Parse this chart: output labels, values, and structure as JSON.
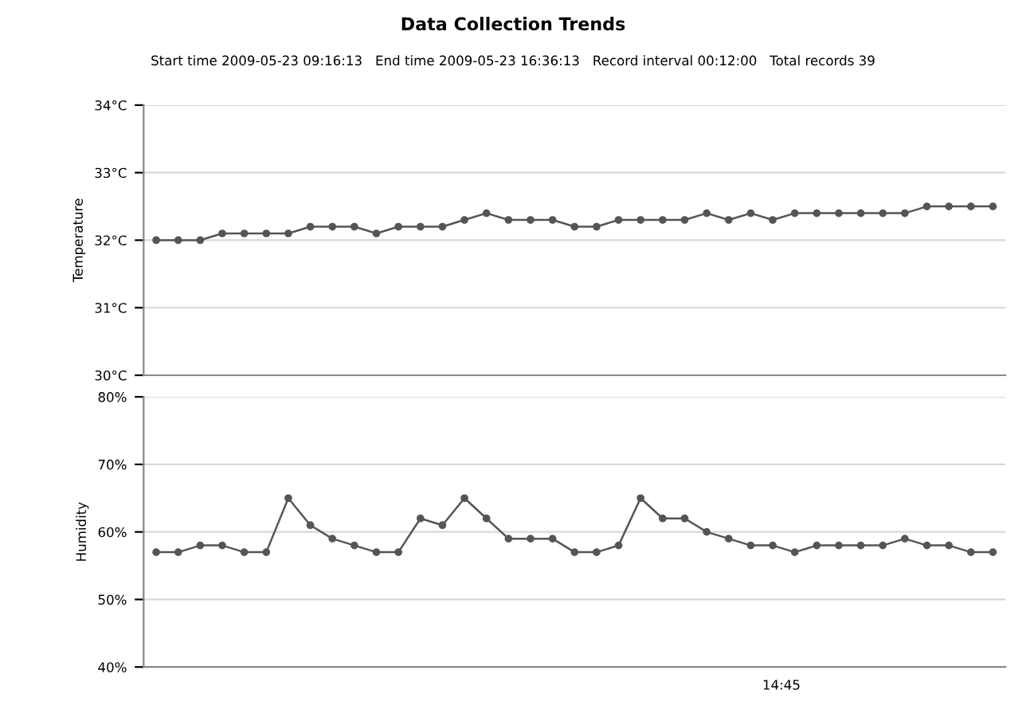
{
  "chart_data": [
    {
      "type": "line",
      "title": "Data Collection Trends",
      "subtitle": "Start time 2009-05-23 09:16:13   End time 2009-05-23 16:36:13   Record interval 00:12:00   Total records 39",
      "ylabel": "Temperature",
      "categories": [
        null,
        null,
        null,
        null,
        null,
        null,
        null,
        null,
        null,
        null,
        null,
        null,
        null,
        null,
        null,
        null,
        null,
        null,
        null,
        null,
        null,
        null,
        null,
        null,
        null,
        null,
        null,
        null,
        null,
        null,
        null,
        null,
        null,
        null,
        null,
        null,
        null,
        null,
        null
      ],
      "series": [
        {
          "color": "#555555",
          "values": [
            32.0,
            32.0,
            32.0,
            32.1,
            32.1,
            32.1,
            32.1,
            32.2,
            32.2,
            32.2,
            32.1,
            32.2,
            32.2,
            32.2,
            32.3,
            32.4,
            32.3,
            32.3,
            32.3,
            32.2,
            32.2,
            32.3,
            32.3,
            32.3,
            32.3,
            32.4,
            32.3,
            32.4,
            32.3,
            32.4,
            32.4,
            32.4,
            32.4,
            32.4,
            32.4,
            32.5,
            32.5,
            32.5,
            32.5
          ]
        }
      ],
      "ylim": [
        30,
        34
      ],
      "yticks": [
        {
          "value": 30,
          "label": "30°C"
        },
        {
          "value": 31,
          "label": "31°C"
        },
        {
          "value": 32,
          "label": "32°C"
        },
        {
          "value": 33,
          "label": "33°C"
        },
        {
          "value": 34,
          "label": "34°C"
        }
      ],
      "grid": "y",
      "marker": "circle",
      "line_style": "solid"
    },
    {
      "type": "line",
      "ylabel": "Humidity",
      "annotations": [
        "14:45"
      ],
      "categories": [
        null,
        null,
        null,
        null,
        null,
        null,
        null,
        null,
        null,
        null,
        null,
        null,
        null,
        null,
        null,
        null,
        null,
        null,
        null,
        null,
        null,
        null,
        null,
        null,
        null,
        null,
        null,
        null,
        null,
        null,
        null,
        null,
        null,
        null,
        null,
        null,
        null,
        null,
        null
      ],
      "series": [
        {
          "color": "#555555",
          "values": [
            57,
            57,
            58,
            58,
            57,
            57,
            65,
            61,
            59,
            58,
            57,
            57,
            62,
            61,
            65,
            62,
            59,
            59,
            59,
            57,
            57,
            58,
            65,
            62,
            62,
            60,
            59,
            58,
            58,
            57,
            58,
            58,
            58,
            58,
            59,
            58,
            58,
            57,
            57
          ]
        }
      ],
      "ylim": [
        40,
        80
      ],
      "yticks": [
        {
          "value": 40,
          "label": "40%"
        },
        {
          "value": 50,
          "label": "50%"
        },
        {
          "value": 60,
          "label": "60%"
        },
        {
          "value": 70,
          "label": "70%"
        },
        {
          "value": 80,
          "label": "80%"
        }
      ],
      "grid": "y",
      "marker": "circle",
      "line_style": "solid"
    }
  ]
}
